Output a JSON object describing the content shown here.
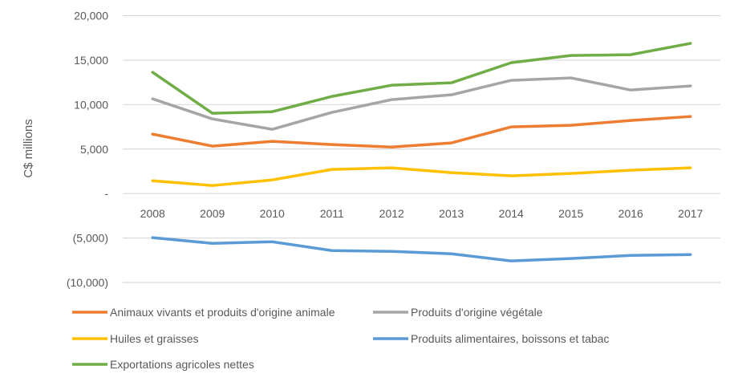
{
  "chart_data": {
    "type": "line",
    "ylabel": "C$ millions",
    "xlabel": "",
    "ylim": [
      -10000,
      20000
    ],
    "y_ticks": [
      20000,
      15000,
      10000,
      5000,
      0,
      -5000,
      -10000
    ],
    "y_tick_labels": [
      "20,000",
      "15,000",
      "10,000",
      "5,000",
      "-",
      "(5,000)",
      "(10,000)"
    ],
    "grid": true,
    "legend_position": "bottom",
    "categories": [
      "2008",
      "2009",
      "2010",
      "2011",
      "2012",
      "2013",
      "2014",
      "2015",
      "2016",
      "2017"
    ],
    "series": [
      {
        "name": "Animaux vivants et produits d'origine animale",
        "color": "#ED7D31",
        "values": [
          6680,
          5330,
          5870,
          5510,
          5230,
          5690,
          7490,
          7670,
          8210,
          8660
        ]
      },
      {
        "name": "Produits d'origine végétale",
        "color": "#A5A5A5",
        "values": [
          10650,
          8390,
          7220,
          9120,
          10560,
          11100,
          12730,
          13000,
          11640,
          12090
        ]
      },
      {
        "name": "Huiles et graisses",
        "color": "#FFC000",
        "values": [
          1440,
          900,
          1530,
          2710,
          2890,
          2350,
          1990,
          2260,
          2620,
          2890
        ]
      },
      {
        "name": "Produits alimentaires, boissons et tabac",
        "color": "#5B9BD5",
        "values": [
          -4960,
          -5600,
          -5420,
          -6410,
          -6500,
          -6770,
          -7580,
          -7310,
          -6950,
          -6860
        ]
      },
      {
        "name": "Exportations agricoles nettes",
        "color": "#70AD47",
        "values": [
          13630,
          9030,
          9200,
          10920,
          12180,
          12450,
          14710,
          15520,
          15610,
          16880
        ]
      }
    ]
  }
}
